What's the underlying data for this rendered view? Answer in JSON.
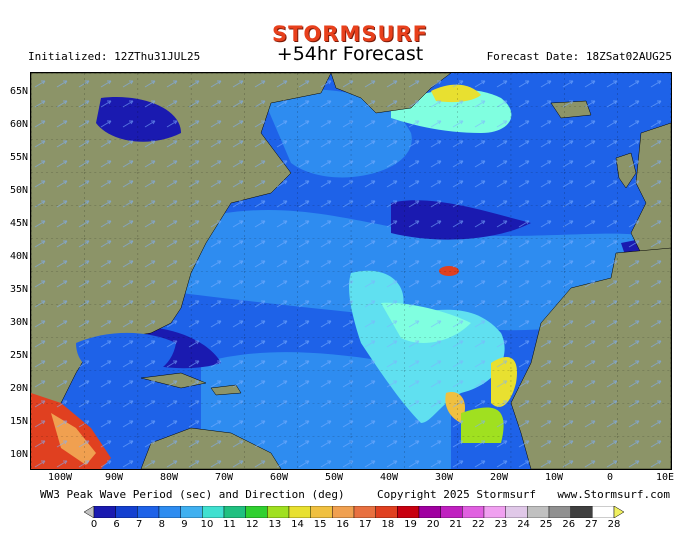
{
  "header": {
    "brand": "STORMSURF",
    "title": "+54hr Forecast",
    "initialized": "Initialized: 12ZThu31JUL25",
    "forecast_date": "Forecast Date: 18ZSat02AUG25"
  },
  "axes": {
    "lat_labels": [
      "65N",
      "60N",
      "55N",
      "50N",
      "45N",
      "40N",
      "35N",
      "30N",
      "25N",
      "20N",
      "15N",
      "10N"
    ],
    "lon_labels": [
      "100W",
      "90W",
      "80W",
      "70W",
      "60W",
      "50W",
      "40W",
      "30W",
      "20W",
      "10W",
      "0",
      "10E"
    ]
  },
  "footer": {
    "description": "WW3 Peak Wave Period (sec) and Direction (deg)",
    "copyright": "Copyright 2025 Stormsurf",
    "url": "www.Stormsurf.com"
  },
  "colorbar": {
    "labels": [
      "0",
      "6",
      "7",
      "8",
      "9",
      "10",
      "11",
      "12",
      "13",
      "14",
      "15",
      "16",
      "17",
      "18",
      "19",
      "20",
      "21",
      "22",
      "23",
      "24",
      "25",
      "26",
      "27",
      "28"
    ],
    "colors": [
      "#1a1ab0",
      "#1440d0",
      "#1e62e8",
      "#2e8cf0",
      "#40b0f0",
      "#40e0d0",
      "#20c080",
      "#30d030",
      "#a0e020",
      "#e8e030",
      "#f0c040",
      "#f0a050",
      "#e87040",
      "#e04020",
      "#c80010",
      "#a000a0",
      "#c020c0",
      "#e060e0",
      "#f0a0f0",
      "#e0c8e8",
      "#c0c0c0",
      "#909090",
      "#404040",
      "#ffffff",
      "#f0f060"
    ]
  },
  "colors": {
    "land": "#8c9468",
    "ocean_deep": "#1a1ab0",
    "ocean_mid": "#1e62e8",
    "ocean_light": "#2e8cf0",
    "ocean_cyan": "#60e0f0",
    "ocean_aqua": "#80ffe0",
    "brand": "#e8401c"
  }
}
